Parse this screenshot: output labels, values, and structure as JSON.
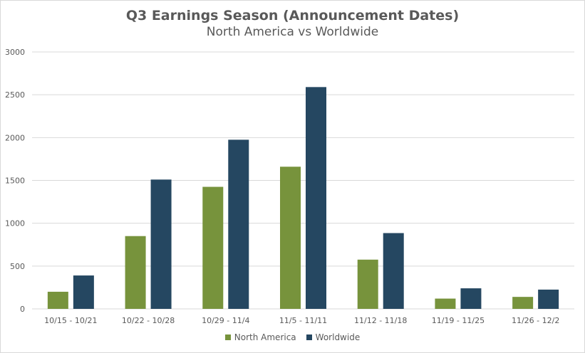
{
  "chart_data": {
    "type": "bar",
    "title": "Q3 Earnings Season (Announcement Dates)",
    "subtitle": "North America vs Worldwide",
    "xlabel": "",
    "ylabel": "",
    "ylim": [
      0,
      3000
    ],
    "yticks": [
      "0",
      "500",
      "1000",
      "1500",
      "2000",
      "2500",
      "3000"
    ],
    "grid": true,
    "legend_position": "bottom",
    "categories": [
      "10/15 - 10/21",
      "10/22 - 10/28",
      "10/29 - 11/4",
      "11/5 - 11/11",
      "11/12 - 11/18",
      "11/19 - 11/25",
      "11/26 - 12/2"
    ],
    "series": [
      {
        "name": "North America",
        "color": "#77933c",
        "values": [
          200,
          850,
          1425,
          1660,
          575,
          120,
          140
        ]
      },
      {
        "name": "Worldwide",
        "color": "#254761",
        "values": [
          390,
          1510,
          1975,
          2590,
          885,
          240,
          225
        ]
      }
    ]
  }
}
